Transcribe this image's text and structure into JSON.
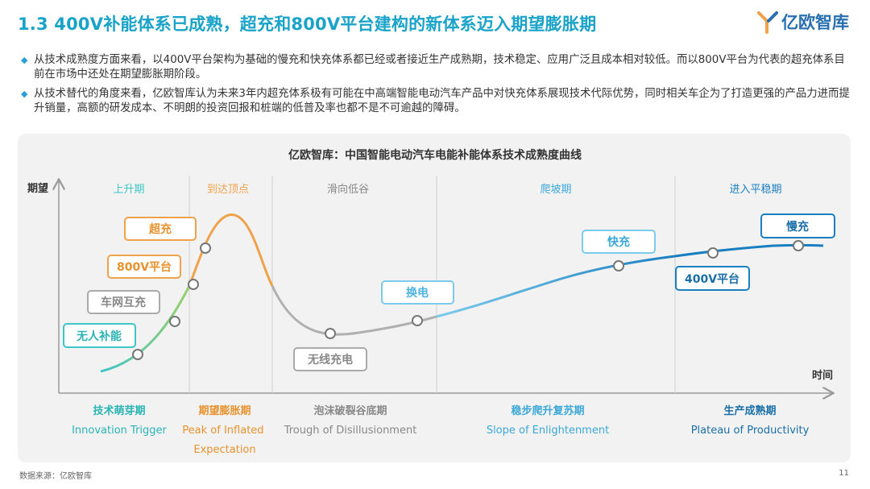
{
  "header": {
    "title": "1.3 400V补能体系已成熟，超充和800V平台建构的新体系迈入期望膨胀期",
    "logo_text": "亿欧智库"
  },
  "bullets": [
    "从技术成熟度方面来看，以400V平台架构为基础的慢充和快充体系都已经或者接近生产成熟期，技术稳定、应用广泛且成本相对较低。而以800V平台为代表的超充体系目前在市场中还处在期望膨胀期阶段。",
    "从技术替代的角度来看，亿欧智库认为未来3年内超充体系极有可能在中高端智能电动汽车产品中对快充体系展现技术代际优势，同时相关车企为了打造更强的产品力进而提升销量，高额的研发成本、不明朗的投资回报和桩端的低普及率也都不是不可逾越的障碍。"
  ],
  "footer": {
    "source": "数据来源：亿欧智库",
    "page": "11"
  },
  "colors": {
    "teal": "#3cc6c6",
    "orange": "#f0a24a",
    "gray": "#aaaaaa",
    "lightblue": "#7ccbeb",
    "darkblue": "#1a7fc0",
    "title": "#1aa3c8"
  },
  "chart_data": {
    "type": "line",
    "title": "亿欧智库：中国智能电动汽车电能补能体系技术成熟度曲线",
    "ylabel": "期望",
    "xlabel": "时间",
    "phases_top": [
      "上升期",
      "到达顶点",
      "滑向低谷",
      "爬坡期",
      "进入平稳期"
    ],
    "phases_bottom": [
      {
        "cn": "技术萌芽期",
        "en": "Innovation Trigger"
      },
      {
        "cn": "期望膨胀期",
        "en": "Peak of Inflated Expectation"
      },
      {
        "cn": "泡沫破裂谷底期",
        "en": "Trough of Disillusionment"
      },
      {
        "cn": "稳步爬升复苏期",
        "en": "Slope of Enlightenment"
      },
      {
        "cn": "生产成熟期",
        "en": "Plateau of Productivity"
      }
    ],
    "technologies": [
      "无人补能",
      "车网互充",
      "800V平台",
      "超充",
      "换电",
      "无线充电",
      "快充",
      "400V平台",
      "慢充"
    ]
  }
}
